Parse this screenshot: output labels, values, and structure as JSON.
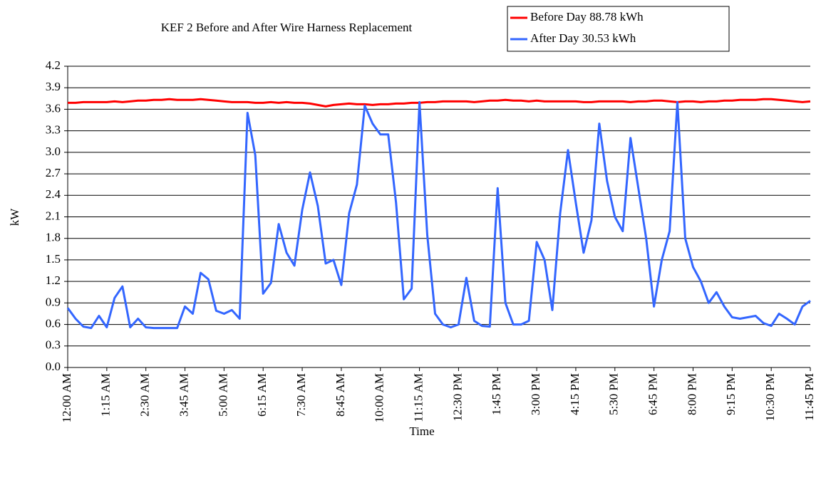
{
  "chart_data": {
    "type": "line",
    "title": "KEF 2 Before and After Wire Harness Replacement",
    "x_label": "Time",
    "y_label": "kW",
    "categories": [
      "12:00 AM",
      null,
      null,
      null,
      null,
      "1:15 AM",
      null,
      null,
      null,
      null,
      "2:30 AM",
      null,
      null,
      null,
      null,
      "3:45 AM",
      null,
      null,
      null,
      null,
      "5:00 AM",
      null,
      null,
      null,
      null,
      "6:15 AM",
      null,
      null,
      null,
      null,
      "7:30 AM",
      null,
      null,
      null,
      null,
      "8:45 AM",
      null,
      null,
      null,
      null,
      "10:00 AM",
      null,
      null,
      null,
      null,
      "11:15 AM",
      null,
      null,
      null,
      null,
      "12:30 PM",
      null,
      null,
      null,
      null,
      "1:45 PM",
      null,
      null,
      null,
      null,
      "3:00 PM",
      null,
      null,
      null,
      null,
      "4:15 PM",
      null,
      null,
      null,
      null,
      "5:30 PM",
      null,
      null,
      null,
      null,
      "6:45 PM",
      null,
      null,
      null,
      null,
      "8:00 PM",
      null,
      null,
      null,
      null,
      "9:15 PM",
      null,
      null,
      null,
      null,
      "10:30 PM",
      null,
      null,
      null,
      null,
      "11:45 PM"
    ],
    "series": [
      {
        "name": "Before Day 88.78 kWh",
        "color": "#ff0000",
        "values": [
          3.69,
          3.69,
          3.7,
          3.7,
          3.7,
          3.7,
          3.71,
          3.7,
          3.71,
          3.72,
          3.72,
          3.73,
          3.73,
          3.74,
          3.73,
          3.73,
          3.73,
          3.74,
          3.73,
          3.72,
          3.71,
          3.7,
          3.7,
          3.7,
          3.69,
          3.69,
          3.7,
          3.69,
          3.7,
          3.69,
          3.69,
          3.68,
          3.66,
          3.64,
          3.66,
          3.67,
          3.68,
          3.67,
          3.67,
          3.66,
          3.67,
          3.67,
          3.68,
          3.68,
          3.69,
          3.69,
          3.7,
          3.7,
          3.71,
          3.71,
          3.71,
          3.71,
          3.7,
          3.71,
          3.72,
          3.72,
          3.73,
          3.72,
          3.72,
          3.71,
          3.72,
          3.71,
          3.71,
          3.71,
          3.71,
          3.71,
          3.7,
          3.7,
          3.71,
          3.71,
          3.71,
          3.71,
          3.7,
          3.71,
          3.71,
          3.72,
          3.72,
          3.71,
          3.7,
          3.71,
          3.71,
          3.7,
          3.71,
          3.71,
          3.72,
          3.72,
          3.73,
          3.73,
          3.73,
          3.74,
          3.74,
          3.73,
          3.72,
          3.71,
          3.7,
          3.71
        ]
      },
      {
        "name": "After Day 30.53 kWh",
        "color": "#3366ff",
        "values": [
          0.83,
          0.68,
          0.57,
          0.55,
          0.72,
          0.56,
          0.97,
          1.13,
          0.56,
          0.68,
          0.56,
          0.55,
          0.55,
          0.55,
          0.55,
          0.85,
          0.75,
          1.32,
          1.23,
          0.79,
          0.75,
          0.8,
          0.68,
          3.55,
          2.96,
          1.03,
          1.18,
          2.0,
          1.6,
          1.42,
          2.2,
          2.72,
          2.25,
          1.45,
          1.5,
          1.15,
          2.15,
          2.55,
          3.65,
          3.4,
          3.25,
          3.25,
          2.3,
          0.95,
          1.1,
          3.7,
          1.85,
          0.75,
          0.6,
          0.56,
          0.6,
          1.25,
          0.65,
          0.58,
          0.57,
          2.5,
          0.9,
          0.6,
          0.6,
          0.65,
          1.75,
          1.5,
          0.8,
          2.15,
          3.03,
          2.3,
          1.6,
          2.05,
          3.4,
          2.6,
          2.1,
          1.9,
          3.2,
          2.5,
          1.8,
          0.85,
          1.5,
          1.9,
          3.7,
          1.8,
          1.4,
          1.2,
          0.9,
          1.05,
          0.85,
          0.7,
          0.68,
          0.7,
          0.72,
          0.62,
          0.58,
          0.75,
          0.68,
          0.6,
          0.85,
          0.93
        ]
      }
    ],
    "ylim": [
      0,
      4.2
    ],
    "yticks": [
      {
        "value": 0,
        "label": "0.0"
      },
      0.3,
      0.6,
      0.9,
      1.2,
      1.5,
      1.8,
      2.1,
      2.4,
      2.7,
      {
        "value": 3,
        "label": "3.0"
      },
      3.3,
      3.6,
      3.9,
      4.2
    ],
    "grid": true,
    "legend": "top-right"
  }
}
